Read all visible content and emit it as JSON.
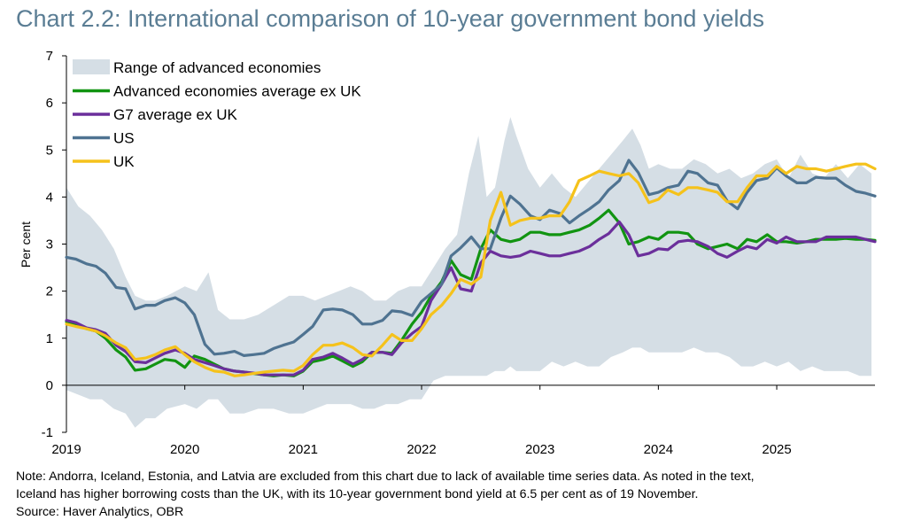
{
  "title": "Chart 2.2: International comparison of 10-year government bond yields",
  "notes": {
    "line1": "Note: Andorra, Iceland, Estonia, and Latvia are excluded from this chart due to lack of available time series data. As noted in the text,",
    "line2": "Iceland has higher borrowing costs than the UK, with its 10-year government bond yield at 6.5 per cent as of 19 November.",
    "source": "Source: Haver Analytics, OBR"
  },
  "chart_data": {
    "type": "line",
    "title": "Chart 2.2: International comparison of 10-year government bond yields",
    "ylabel": "Per cent",
    "xlabel": "",
    "ylim": [
      -1,
      7
    ],
    "yticks": [
      -1,
      0,
      1,
      2,
      3,
      4,
      5,
      6,
      7
    ],
    "xlim": [
      2019.0,
      2025.83
    ],
    "xticks": [
      2019,
      2020,
      2021,
      2022,
      2023,
      2024,
      2025
    ],
    "grid": false,
    "legend_position": "top-left",
    "colors": {
      "range": "#d5dee5",
      "adv_avg": "#119411",
      "g7_avg": "#6b2f9b",
      "us": "#4f7391",
      "uk": "#f5c21b"
    },
    "range_band": {
      "name": "Range of advanced economies",
      "x": [
        2019.0,
        2019.1,
        2019.2,
        2019.3,
        2019.4,
        2019.5,
        2019.58,
        2019.67,
        2019.75,
        2019.85,
        2020.0,
        2020.1,
        2020.2,
        2020.28,
        2020.38,
        2020.5,
        2020.62,
        2020.75,
        2020.88,
        2021.0,
        2021.1,
        2021.2,
        2021.3,
        2021.4,
        2021.5,
        2021.6,
        2021.7,
        2021.8,
        2021.9,
        2022.0,
        2022.1,
        2022.2,
        2022.3,
        2022.4,
        2022.48,
        2022.55,
        2022.62,
        2022.7,
        2022.75,
        2022.8,
        2022.9,
        2023.0,
        2023.1,
        2023.2,
        2023.3,
        2023.4,
        2023.5,
        2023.6,
        2023.7,
        2023.78,
        2023.85,
        2023.92,
        2024.0,
        2024.1,
        2024.2,
        2024.3,
        2024.4,
        2024.5,
        2024.6,
        2024.7,
        2024.8,
        2024.9,
        2025.0,
        2025.1,
        2025.2,
        2025.3,
        2025.4,
        2025.5,
        2025.6,
        2025.7,
        2025.8
      ],
      "upper": [
        4.2,
        3.8,
        3.6,
        3.3,
        2.9,
        2.3,
        1.9,
        1.8,
        1.8,
        1.9,
        2.1,
        2.0,
        2.4,
        1.6,
        1.4,
        1.4,
        1.5,
        1.7,
        1.9,
        1.9,
        1.8,
        1.9,
        2.0,
        2.1,
        2.0,
        1.8,
        1.8,
        2.0,
        2.1,
        2.1,
        2.5,
        2.9,
        3.2,
        4.5,
        5.3,
        4.0,
        4.2,
        5.2,
        5.7,
        5.3,
        4.6,
        4.2,
        4.5,
        4.2,
        4.0,
        4.3,
        4.6,
        4.9,
        5.2,
        5.45,
        5.1,
        4.6,
        4.7,
        4.6,
        4.6,
        4.8,
        4.7,
        4.5,
        4.6,
        4.4,
        4.5,
        4.7,
        4.8,
        4.4,
        4.9,
        4.5,
        4.4,
        4.7,
        4.4,
        4.7,
        4.5
      ],
      "lower": [
        -0.1,
        -0.2,
        -0.3,
        -0.3,
        -0.5,
        -0.6,
        -0.9,
        -0.7,
        -0.7,
        -0.5,
        -0.4,
        -0.5,
        -0.3,
        -0.3,
        -0.6,
        -0.6,
        -0.5,
        -0.5,
        -0.6,
        -0.6,
        -0.5,
        -0.4,
        -0.4,
        -0.4,
        -0.5,
        -0.5,
        -0.4,
        -0.4,
        -0.3,
        -0.3,
        0.1,
        0.2,
        0.2,
        0.2,
        0.2,
        0.2,
        0.3,
        0.3,
        0.4,
        0.3,
        0.3,
        0.3,
        0.5,
        0.4,
        0.5,
        0.4,
        0.4,
        0.6,
        0.7,
        0.8,
        0.8,
        0.7,
        0.7,
        0.7,
        0.7,
        0.8,
        0.7,
        0.7,
        0.6,
        0.4,
        0.4,
        0.5,
        0.4,
        0.5,
        0.3,
        0.4,
        0.3,
        0.3,
        0.3,
        0.2,
        0.2
      ]
    },
    "x": [
      2019.0,
      2019.08,
      2019.17,
      2019.25,
      2019.33,
      2019.42,
      2019.5,
      2019.58,
      2019.67,
      2019.75,
      2019.83,
      2019.92,
      2020.0,
      2020.08,
      2020.17,
      2020.25,
      2020.33,
      2020.42,
      2020.5,
      2020.58,
      2020.67,
      2020.75,
      2020.83,
      2020.92,
      2021.0,
      2021.08,
      2021.17,
      2021.25,
      2021.33,
      2021.42,
      2021.5,
      2021.58,
      2021.67,
      2021.75,
      2021.83,
      2021.92,
      2022.0,
      2022.08,
      2022.17,
      2022.25,
      2022.33,
      2022.42,
      2022.5,
      2022.58,
      2022.67,
      2022.75,
      2022.83,
      2022.92,
      2023.0,
      2023.08,
      2023.17,
      2023.25,
      2023.33,
      2023.42,
      2023.5,
      2023.58,
      2023.67,
      2023.75,
      2023.83,
      2023.92,
      2024.0,
      2024.08,
      2024.17,
      2024.25,
      2024.33,
      2024.42,
      2024.5,
      2024.58,
      2024.67,
      2024.75,
      2024.83,
      2024.92,
      2025.0,
      2025.08,
      2025.17,
      2025.25,
      2025.33,
      2025.42,
      2025.5,
      2025.58,
      2025.67,
      2025.75,
      2025.83
    ],
    "series": [
      {
        "name": "Advanced economies average ex UK",
        "color_key": "adv_avg",
        "values": [
          1.35,
          1.3,
          1.2,
          1.15,
          1.0,
          0.75,
          0.6,
          0.32,
          0.35,
          0.45,
          0.55,
          0.52,
          0.38,
          0.62,
          0.55,
          0.45,
          0.35,
          0.3,
          0.28,
          0.25,
          0.22,
          0.2,
          0.22,
          0.2,
          0.3,
          0.5,
          0.55,
          0.62,
          0.52,
          0.4,
          0.5,
          0.7,
          0.7,
          0.68,
          0.95,
          1.3,
          1.55,
          1.9,
          2.2,
          2.65,
          2.35,
          2.25,
          2.9,
          3.3,
          3.1,
          3.05,
          3.1,
          3.25,
          3.25,
          3.2,
          3.2,
          3.25,
          3.3,
          3.4,
          3.55,
          3.72,
          3.45,
          3.0,
          3.05,
          3.15,
          3.1,
          3.25,
          3.25,
          3.22,
          3.0,
          2.9,
          2.95,
          3.0,
          2.9,
          3.1,
          3.05,
          3.2,
          3.05,
          3.05,
          3.02,
          3.05,
          3.1,
          3.1,
          3.1,
          3.12,
          3.1,
          3.1,
          3.08
        ]
      },
      {
        "name": "G7 average ex UK",
        "color_key": "g7_avg",
        "values": [
          1.38,
          1.33,
          1.22,
          1.18,
          1.1,
          0.85,
          0.72,
          0.5,
          0.48,
          0.58,
          0.68,
          0.75,
          0.68,
          0.55,
          0.48,
          0.42,
          0.35,
          0.3,
          0.28,
          0.26,
          0.22,
          0.22,
          0.22,
          0.22,
          0.32,
          0.55,
          0.6,
          0.68,
          0.58,
          0.45,
          0.55,
          0.7,
          0.7,
          0.65,
          0.9,
          1.1,
          1.25,
          1.8,
          2.15,
          2.5,
          2.05,
          2.0,
          2.6,
          2.85,
          2.75,
          2.72,
          2.75,
          2.85,
          2.8,
          2.75,
          2.75,
          2.8,
          2.85,
          2.95,
          3.1,
          3.22,
          3.47,
          3.2,
          2.75,
          2.8,
          2.9,
          2.88,
          3.05,
          3.08,
          3.05,
          2.95,
          2.8,
          2.72,
          2.85,
          2.95,
          2.9,
          3.1,
          3.02,
          3.15,
          3.05,
          3.05,
          3.05,
          3.15,
          3.15,
          3.15,
          3.15,
          3.1,
          3.05
        ]
      },
      {
        "name": "US",
        "color_key": "us",
        "values": [
          2.72,
          2.68,
          2.58,
          2.53,
          2.38,
          2.08,
          2.05,
          1.62,
          1.7,
          1.7,
          1.8,
          1.86,
          1.75,
          1.5,
          0.87,
          0.66,
          0.68,
          0.72,
          0.63,
          0.65,
          0.68,
          0.78,
          0.85,
          0.92,
          1.08,
          1.25,
          1.6,
          1.62,
          1.6,
          1.5,
          1.3,
          1.3,
          1.38,
          1.58,
          1.56,
          1.48,
          1.78,
          1.95,
          2.15,
          2.75,
          2.92,
          3.15,
          2.9,
          2.9,
          3.55,
          4.02,
          3.85,
          3.6,
          3.52,
          3.72,
          3.65,
          3.45,
          3.6,
          3.75,
          3.9,
          4.15,
          4.35,
          4.78,
          4.52,
          4.05,
          4.1,
          4.2,
          4.25,
          4.55,
          4.5,
          4.3,
          4.25,
          3.92,
          3.75,
          4.1,
          4.35,
          4.4,
          4.62,
          4.45,
          4.3,
          4.3,
          4.42,
          4.4,
          4.4,
          4.25,
          4.12,
          4.08,
          4.02
        ]
      },
      {
        "name": "UK",
        "color_key": "uk",
        "values": [
          1.3,
          1.25,
          1.2,
          1.15,
          1.05,
          0.9,
          0.8,
          0.55,
          0.58,
          0.65,
          0.75,
          0.82,
          0.65,
          0.5,
          0.38,
          0.3,
          0.28,
          0.2,
          0.22,
          0.25,
          0.28,
          0.3,
          0.32,
          0.3,
          0.42,
          0.65,
          0.85,
          0.85,
          0.9,
          0.8,
          0.65,
          0.62,
          0.85,
          1.08,
          0.95,
          0.95,
          1.2,
          1.5,
          1.7,
          1.95,
          2.25,
          2.15,
          2.3,
          3.5,
          4.1,
          3.4,
          3.5,
          3.55,
          3.55,
          3.6,
          3.6,
          3.9,
          4.35,
          4.45,
          4.55,
          4.5,
          4.45,
          4.5,
          4.3,
          3.88,
          3.95,
          4.15,
          4.05,
          4.2,
          4.2,
          4.15,
          4.1,
          3.9,
          3.9,
          4.2,
          4.45,
          4.45,
          4.65,
          4.5,
          4.65,
          4.6,
          4.6,
          4.55,
          4.6,
          4.65,
          4.7,
          4.7,
          4.6
        ]
      }
    ],
    "legend": [
      {
        "label": "Range of advanced economies",
        "kind": "area",
        "color_key": "range"
      },
      {
        "label": "Advanced economies average ex UK",
        "kind": "line",
        "color_key": "adv_avg"
      },
      {
        "label": "G7 average ex UK",
        "kind": "line",
        "color_key": "g7_avg"
      },
      {
        "label": "US",
        "kind": "line",
        "color_key": "us"
      },
      {
        "label": "UK",
        "kind": "line",
        "color_key": "uk"
      }
    ]
  }
}
